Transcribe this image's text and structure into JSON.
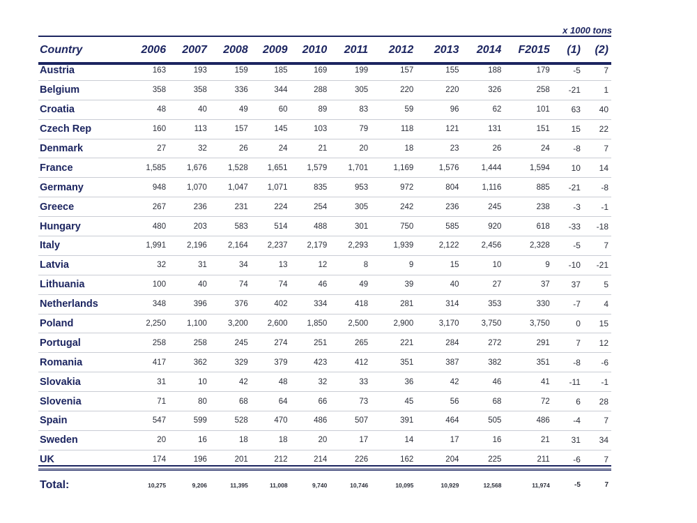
{
  "unit_note": "x 1000 tons",
  "columns": [
    "Country",
    "2006",
    "2007",
    "2008",
    "2009",
    "2010",
    "2011",
    "2012",
    "2013",
    "2014",
    "F2015",
    "(1)",
    "(2)"
  ],
  "rows": [
    [
      "Austria",
      "163",
      "193",
      "159",
      "185",
      "169",
      "199",
      "157",
      "155",
      "188",
      "179",
      "-5",
      "7"
    ],
    [
      "Belgium",
      "358",
      "358",
      "336",
      "344",
      "288",
      "305",
      "220",
      "220",
      "326",
      "258",
      "-21",
      "1"
    ],
    [
      "Croatia",
      "48",
      "40",
      "49",
      "60",
      "89",
      "83",
      "59",
      "96",
      "62",
      "101",
      "63",
      "40"
    ],
    [
      "Czech Rep",
      "160",
      "113",
      "157",
      "145",
      "103",
      "79",
      "118",
      "121",
      "131",
      "151",
      "15",
      "22"
    ],
    [
      "Denmark",
      "27",
      "32",
      "26",
      "24",
      "21",
      "20",
      "18",
      "23",
      "26",
      "24",
      "-8",
      "7"
    ],
    [
      "France",
      "1,585",
      "1,676",
      "1,528",
      "1,651",
      "1,579",
      "1,701",
      "1,169",
      "1,576",
      "1,444",
      "1,594",
      "10",
      "14"
    ],
    [
      "Germany",
      "948",
      "1,070",
      "1,047",
      "1,071",
      "835",
      "953",
      "972",
      "804",
      "1,116",
      "885",
      "-21",
      "-8"
    ],
    [
      "Greece",
      "267",
      "236",
      "231",
      "224",
      "254",
      "305",
      "242",
      "236",
      "245",
      "238",
      "-3",
      "-1"
    ],
    [
      "Hungary",
      "480",
      "203",
      "583",
      "514",
      "488",
      "301",
      "750",
      "585",
      "920",
      "618",
      "-33",
      "-18"
    ],
    [
      "Italy",
      "1,991",
      "2,196",
      "2,164",
      "2,237",
      "2,179",
      "2,293",
      "1,939",
      "2,122",
      "2,456",
      "2,328",
      "-5",
      "7"
    ],
    [
      "Latvia",
      "32",
      "31",
      "34",
      "13",
      "12",
      "8",
      "9",
      "15",
      "10",
      "9",
      "-10",
      "-21"
    ],
    [
      "Lithuania",
      "100",
      "40",
      "74",
      "74",
      "46",
      "49",
      "39",
      "40",
      "27",
      "37",
      "37",
      "5"
    ],
    [
      "Netherlands",
      "348",
      "396",
      "376",
      "402",
      "334",
      "418",
      "281",
      "314",
      "353",
      "330",
      "-7",
      "4"
    ],
    [
      "Poland",
      "2,250",
      "1,100",
      "3,200",
      "2,600",
      "1,850",
      "2,500",
      "2,900",
      "3,170",
      "3,750",
      "3,750",
      "0",
      "15"
    ],
    [
      "Portugal",
      "258",
      "258",
      "245",
      "274",
      "251",
      "265",
      "221",
      "284",
      "272",
      "291",
      "7",
      "12"
    ],
    [
      "Romania",
      "417",
      "362",
      "329",
      "379",
      "423",
      "412",
      "351",
      "387",
      "382",
      "351",
      "-8",
      "-6"
    ],
    [
      "Slovakia",
      "31",
      "10",
      "42",
      "48",
      "32",
      "33",
      "36",
      "42",
      "46",
      "41",
      "-11",
      "-1"
    ],
    [
      "Slovenia",
      "71",
      "80",
      "68",
      "64",
      "66",
      "73",
      "45",
      "56",
      "68",
      "72",
      "6",
      "28"
    ],
    [
      "Spain",
      "547",
      "599",
      "528",
      "470",
      "486",
      "507",
      "391",
      "464",
      "505",
      "486",
      "-4",
      "7"
    ],
    [
      "Sweden",
      "20",
      "16",
      "18",
      "18",
      "20",
      "17",
      "14",
      "17",
      "16",
      "21",
      "31",
      "34"
    ],
    [
      "UK",
      "174",
      "196",
      "201",
      "212",
      "214",
      "226",
      "162",
      "204",
      "225",
      "211",
      "-6",
      "7"
    ]
  ],
  "total": [
    "Total:",
    "10,275",
    "9,206",
    "11,395",
    "11,008",
    "9,740",
    "10,746",
    "10,095",
    "10,929",
    "12,568",
    "11,974",
    "-5",
    "7"
  ]
}
